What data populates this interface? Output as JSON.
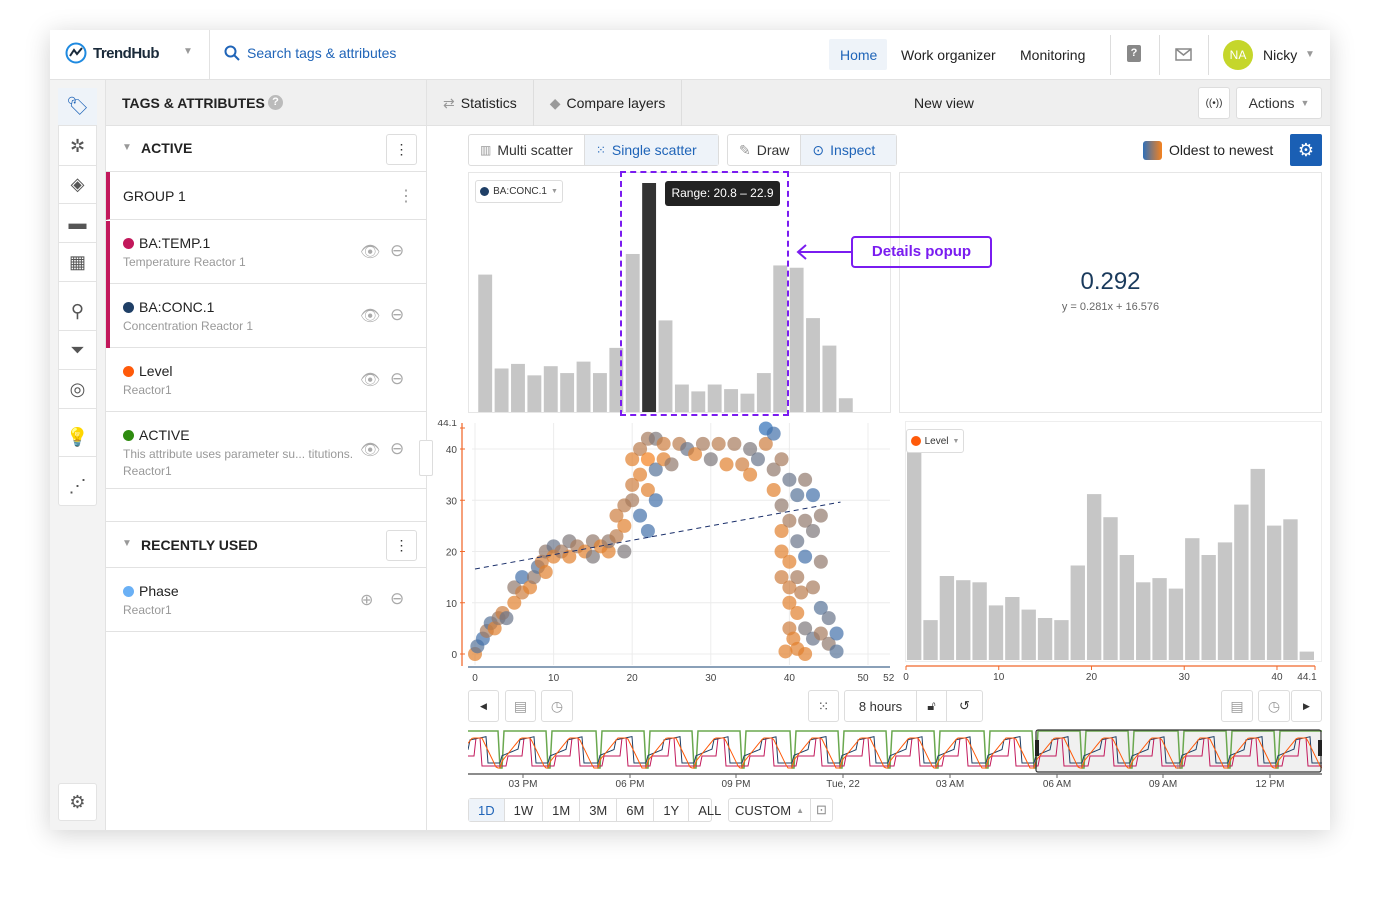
{
  "topbar": {
    "logo": "TrendHub",
    "search_placeholder": "Search tags & attributes",
    "nav": [
      "Home",
      "Work organizer",
      "Monitoring"
    ],
    "active_nav": "Home",
    "avatar_initials": "NA",
    "user": "Nicky",
    "avatar_color": "#c5d62b"
  },
  "left_panel": {
    "title": "TAGS & ATTRIBUTES",
    "active_section": "ACTIVE",
    "group": "GROUP 1",
    "items": [
      {
        "name": "BA:TEMP.1",
        "desc": "Temperature Reactor 1",
        "color": "#c2185b"
      },
      {
        "name": "BA:CONC.1",
        "desc": "Concentration Reactor 1",
        "color": "#1f3f66"
      },
      {
        "name": "Level",
        "desc": "Reactor1",
        "color": "#ff5a0a"
      },
      {
        "name": "ACTIVE",
        "desc": "This attribute uses parameter su... titutions.",
        "desc2": "Reactor1",
        "color": "#2e8b0f"
      }
    ],
    "recent_section": "RECENTLY USED",
    "recent_items": [
      {
        "name": "Phase",
        "desc": "Reactor1",
        "color": "#6ab0f5"
      }
    ]
  },
  "view": {
    "tabs": [
      "Statistics",
      "Compare layers"
    ],
    "title": "New view",
    "actions": "Actions",
    "modes": [
      "Multi scatter",
      "Single scatter"
    ],
    "active_mode": "Single scatter",
    "tools": [
      "Draw",
      "Inspect"
    ],
    "active_tool": "Inspect",
    "color_order": "Oldest to newest"
  },
  "annotation": {
    "label": "Details popup",
    "color": "#7a1cf0"
  },
  "correlation": {
    "value": "0.292",
    "equation": "y = 0.281x + 16.576"
  },
  "controls": {
    "duration": "8 hours",
    "ranges": [
      "1D",
      "1W",
      "1M",
      "3M",
      "6M",
      "1Y",
      "ALL"
    ],
    "active_range": "1D",
    "custom": "CUSTOM",
    "timeline_labels": [
      "03 PM",
      "06 PM",
      "09 PM",
      "Tue, 22",
      "03 AM",
      "06 AM",
      "09 AM",
      "12 PM"
    ]
  },
  "chart_data": [
    {
      "type": "bar",
      "name": "top-histogram",
      "legend": "BA:CONC.1",
      "legend_color": "#1f3f66",
      "tooltip": "Range: 20.8 – 22.9",
      "highlighted_index": 10,
      "values": [
        60,
        19,
        21,
        16,
        20,
        17,
        22,
        17,
        28,
        69,
        100,
        40,
        12,
        9,
        12,
        10,
        8,
        17,
        64,
        63,
        41,
        29,
        6
      ]
    },
    {
      "type": "scatter",
      "x_ticks": [
        "0",
        "10",
        "20",
        "30",
        "40",
        "50",
        "52"
      ],
      "y_ticks": [
        "0",
        "10",
        "20",
        "30",
        "40",
        "44.1"
      ],
      "xlim": [
        0,
        52
      ],
      "ylim": [
        0,
        44.1
      ],
      "colors": {
        "oldest": "#2f6fb8",
        "newest": "#f5821f"
      },
      "regression": {
        "slope": 0.281,
        "intercept": 16.576
      },
      "points": [
        [
          0,
          0,
          0.9
        ],
        [
          0.3,
          1.5,
          0.2
        ],
        [
          1,
          3,
          0.1
        ],
        [
          1.5,
          4.5,
          0.6
        ],
        [
          2,
          6,
          0.2
        ],
        [
          2.5,
          5,
          0.9
        ],
        [
          3,
          7,
          0.5
        ],
        [
          3.5,
          8,
          0.8
        ],
        [
          4,
          7,
          0.3
        ],
        [
          5,
          10,
          0.9
        ],
        [
          5,
          13,
          0.5
        ],
        [
          6,
          12,
          0.8
        ],
        [
          6,
          15,
          0.1
        ],
        [
          7,
          13,
          0.9
        ],
        [
          7.5,
          15,
          0.5
        ],
        [
          8,
          17,
          0.2
        ],
        [
          8.5,
          18,
          0.8
        ],
        [
          9,
          20,
          0.5
        ],
        [
          9,
          16,
          0.9
        ],
        [
          10,
          21,
          0.3
        ],
        [
          10,
          19,
          0.9
        ],
        [
          11,
          20,
          0.6
        ],
        [
          12,
          22,
          0.4
        ],
        [
          12,
          19,
          0.9
        ],
        [
          13,
          21,
          0.6
        ],
        [
          14,
          20,
          0.9
        ],
        [
          15,
          22,
          0.5
        ],
        [
          15,
          19,
          0.4
        ],
        [
          16,
          21,
          0.9
        ],
        [
          17,
          20,
          0.9
        ],
        [
          17,
          22,
          0.5
        ],
        [
          18,
          23,
          0.7
        ],
        [
          18,
          27,
          0.8
        ],
        [
          19,
          20,
          0.4
        ],
        [
          19,
          25,
          0.9
        ],
        [
          19,
          29,
          0.7
        ],
        [
          20,
          33,
          0.8
        ],
        [
          20,
          38,
          0.9
        ],
        [
          20,
          30,
          0.6
        ],
        [
          21,
          35,
          0.9
        ],
        [
          21,
          40,
          0.7
        ],
        [
          21,
          27,
          0.1
        ],
        [
          22,
          42,
          0.6
        ],
        [
          22,
          38,
          1
        ],
        [
          22,
          32,
          0.9
        ],
        [
          22,
          24,
          0.1
        ],
        [
          23,
          42,
          0.4
        ],
        [
          23,
          36,
          0.2
        ],
        [
          23,
          30,
          0.1
        ],
        [
          24,
          41,
          0.8
        ],
        [
          24,
          38,
          0.9
        ],
        [
          25,
          37,
          0.5
        ],
        [
          26,
          41,
          0.7
        ],
        [
          27,
          40,
          0.3
        ],
        [
          28,
          39,
          0.9
        ],
        [
          29,
          41,
          0.6
        ],
        [
          30,
          38,
          0.4
        ],
        [
          31,
          41,
          0.7
        ],
        [
          32,
          37,
          0.9
        ],
        [
          33,
          41,
          0.6
        ],
        [
          34,
          37,
          0.8
        ],
        [
          35,
          35,
          0.9
        ],
        [
          35,
          40,
          0.4
        ],
        [
          36,
          38,
          0.3
        ],
        [
          37,
          44,
          0
        ],
        [
          37,
          41,
          0.8
        ],
        [
          38,
          43,
          0.1
        ],
        [
          38,
          36,
          0.5
        ],
        [
          38,
          32,
          0.9
        ],
        [
          39,
          38,
          0.6
        ],
        [
          39,
          29,
          0.5
        ],
        [
          39,
          24,
          0.9
        ],
        [
          39,
          20,
          0.9
        ],
        [
          40,
          34,
          0.3
        ],
        [
          40,
          26,
          0.6
        ],
        [
          40,
          18,
          0.9
        ],
        [
          40,
          13,
          0.8
        ],
        [
          40,
          10,
          0.9
        ],
        [
          40,
          5,
          0.8
        ],
        [
          41,
          31,
          0.2
        ],
        [
          41,
          22,
          0.3
        ],
        [
          41,
          15,
          0.6
        ],
        [
          41,
          8,
          0.9
        ],
        [
          41,
          1,
          0.9
        ],
        [
          42,
          34,
          0.5
        ],
        [
          42,
          26,
          0.5
        ],
        [
          42,
          19,
          0.1
        ],
        [
          42,
          5,
          0.4
        ],
        [
          42,
          0,
          0.9
        ],
        [
          43,
          31,
          0.1
        ],
        [
          43,
          24,
          0.4
        ],
        [
          43,
          13,
          0.6
        ],
        [
          43,
          3,
          0.3
        ],
        [
          44,
          27,
          0.5
        ],
        [
          44,
          18,
          0.5
        ],
        [
          44,
          9,
          0.2
        ],
        [
          44,
          4,
          0.6
        ],
        [
          45,
          7,
          0.3
        ],
        [
          45,
          2,
          0.5
        ],
        [
          46,
          4,
          0.1
        ],
        [
          46,
          0.5,
          0.2
        ],
        [
          39.5,
          0.5,
          0.9
        ],
        [
          40.5,
          3,
          0.9
        ],
        [
          41.5,
          12,
          0.7
        ],
        [
          39,
          15,
          0.8
        ]
      ]
    },
    {
      "type": "bar",
      "name": "bottom-histogram",
      "legend": "Level",
      "legend_color": "#ff5a0a",
      "x_ticks": [
        "0",
        "10",
        "20",
        "30",
        "40",
        "44.1"
      ],
      "xlim": [
        0,
        44.1
      ],
      "values": [
        100,
        19,
        40,
        38,
        37,
        26,
        30,
        24,
        20,
        19,
        45,
        79,
        68,
        50,
        37,
        39,
        34,
        58,
        50,
        56,
        74,
        91,
        64,
        67,
        4
      ]
    }
  ]
}
